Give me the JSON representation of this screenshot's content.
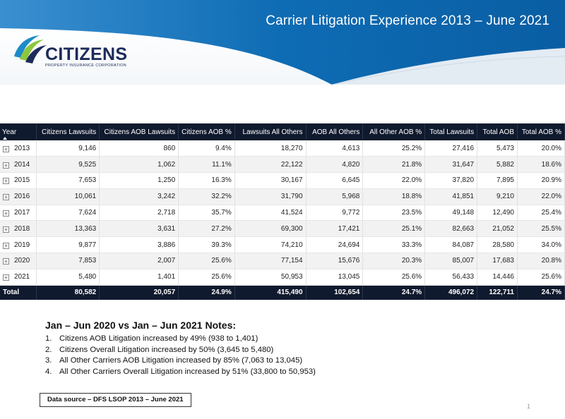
{
  "header": {
    "title": "Carrier Litigation Experience 2013 – June 2021"
  },
  "logo": {
    "name": "CITIZENS",
    "subtitle": "PROPERTY INSURANCE CORPORATION",
    "icon": "citizens-swoosh-icon",
    "colors": [
      "#1b8cc7",
      "#8dc63f",
      "#1c2b5a"
    ]
  },
  "table": {
    "headers": [
      "Year",
      "Citizens Lawsuits",
      "Citizens AOB Lawsuits",
      "Citizens AOB %",
      "Lawsuits All Others",
      "AOB All Others",
      "All Other AOB %",
      "Total Lawsuits",
      "Total AOB",
      "Total AOB %"
    ],
    "rows": [
      [
        "2013",
        "9,146",
        "860",
        "9.4%",
        "18,270",
        "4,613",
        "25.2%",
        "27,416",
        "5,473",
        "20.0%"
      ],
      [
        "2014",
        "9,525",
        "1,062",
        "11.1%",
        "22,122",
        "4,820",
        "21.8%",
        "31,647",
        "5,882",
        "18.6%"
      ],
      [
        "2015",
        "7,653",
        "1,250",
        "16.3%",
        "30,167",
        "6,645",
        "22.0%",
        "37,820",
        "7,895",
        "20.9%"
      ],
      [
        "2016",
        "10,061",
        "3,242",
        "32.2%",
        "31,790",
        "5,968",
        "18.8%",
        "41,851",
        "9,210",
        "22.0%"
      ],
      [
        "2017",
        "7,624",
        "2,718",
        "35.7%",
        "41,524",
        "9,772",
        "23.5%",
        "49,148",
        "12,490",
        "25.4%"
      ],
      [
        "2018",
        "13,363",
        "3,631",
        "27.2%",
        "69,300",
        "17,421",
        "25.1%",
        "82,663",
        "21,052",
        "25.5%"
      ],
      [
        "2019",
        "9,877",
        "3,886",
        "39.3%",
        "74,210",
        "24,694",
        "33.3%",
        "84,087",
        "28,580",
        "34.0%"
      ],
      [
        "2020",
        "7,853",
        "2,007",
        "25.6%",
        "77,154",
        "15,676",
        "20.3%",
        "85,007",
        "17,683",
        "20.8%"
      ],
      [
        "2021",
        "5,480",
        "1,401",
        "25.6%",
        "50,953",
        "13,045",
        "25.6%",
        "56,433",
        "14,446",
        "25.6%"
      ]
    ],
    "total": [
      "Total",
      "80,582",
      "20,057",
      "24.9%",
      "415,490",
      "102,654",
      "24.7%",
      "496,072",
      "122,711",
      "24.7%"
    ],
    "expand_symbol": "+"
  },
  "notes": {
    "title": "Jan – Jun 2020 vs Jan – Jun 2021 Notes:",
    "items": [
      {
        "num": "1.",
        "text": "Citizens AOB Litigation increased by 49% (938 to 1,401)"
      },
      {
        "num": "2.",
        "text": "Citizens Overall Litigation increased by 50% (3,645 to 5,480)"
      },
      {
        "num": "3.",
        "text": "All Other Carriers AOB Litigation increased by 85% (7,063 to 13,045)"
      },
      {
        "num": "4.",
        "text": "All Other Carriers Overall Litigation increased by 51% (33,800 to 50,953)"
      }
    ]
  },
  "source": "Data source – DFS LSOP 2013 – June 2021",
  "page_number": "1",
  "colors": {
    "header_blue": "#0e6cb4",
    "table_header": "#101a2e",
    "row_alt": "#f2f2f2"
  }
}
